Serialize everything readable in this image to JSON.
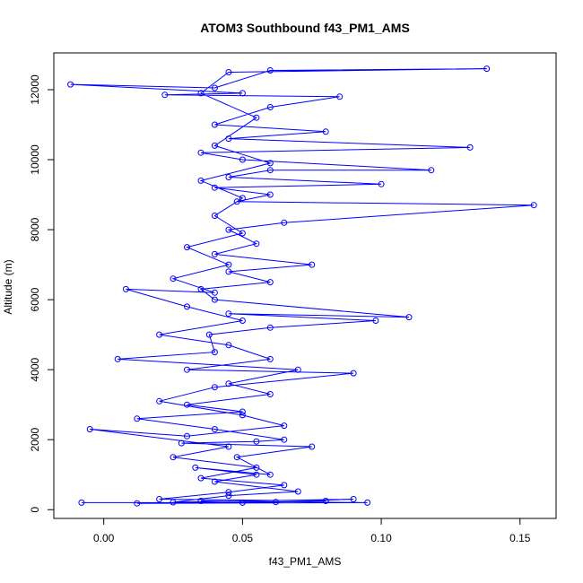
{
  "chart_data": {
    "type": "scatter",
    "title": "ATOM3 Southbound f43_PM1_AMS",
    "xlabel": "f43_PM1_AMS",
    "ylabel": "Altitude (m)",
    "xlim": [
      -0.018,
      0.163
    ],
    "ylim": [
      -250,
      13050
    ],
    "x_ticks": [
      0.0,
      0.05,
      0.1,
      0.15
    ],
    "x_tick_labels": [
      "0.00",
      "0.05",
      "0.10",
      "0.15"
    ],
    "y_ticks": [
      0,
      2000,
      4000,
      6000,
      8000,
      10000,
      12000
    ],
    "y_tick_labels": [
      "0",
      "2000",
      "4000",
      "6000",
      "8000",
      "10000",
      "12000"
    ],
    "grid": false,
    "legend": "none",
    "series": [
      {
        "color": "#0000ff",
        "marker": "open-circle",
        "connected": true,
        "points": [
          [
            0.035,
            250
          ],
          [
            0.095,
            200
          ],
          [
            0.012,
            180
          ],
          [
            0.062,
            220
          ],
          [
            0.09,
            300
          ],
          [
            0.025,
            210
          ],
          [
            0.045,
            400
          ],
          [
            0.07,
            520
          ],
          [
            0.04,
            800
          ],
          [
            0.055,
            1000
          ],
          [
            0.033,
            1200
          ],
          [
            0.06,
            1000
          ],
          [
            0.048,
            1500
          ],
          [
            0.075,
            1800
          ],
          [
            0.028,
            1900
          ],
          [
            0.055,
            1950
          ],
          [
            0.065,
            2000
          ],
          [
            0.04,
            2300
          ],
          [
            0.012,
            2600
          ],
          [
            0.05,
            2800
          ],
          [
            0.03,
            3000
          ],
          [
            0.06,
            3300
          ],
          [
            0.045,
            3600
          ],
          [
            0.07,
            4000
          ],
          [
            0.005,
            4300
          ],
          [
            0.04,
            4500
          ],
          [
            0.038,
            5000
          ],
          [
            0.06,
            5200
          ],
          [
            0.098,
            5400
          ],
          [
            0.045,
            5600
          ],
          [
            0.11,
            5500
          ],
          [
            0.04,
            6000
          ],
          [
            0.035,
            6300
          ],
          [
            0.06,
            6500
          ],
          [
            0.045,
            6800
          ],
          [
            0.075,
            7000
          ],
          [
            0.04,
            7300
          ],
          [
            0.055,
            7600
          ],
          [
            0.045,
            8000
          ],
          [
            0.065,
            8200
          ],
          [
            0.155,
            8700
          ],
          [
            0.048,
            8800
          ],
          [
            0.06,
            9000
          ],
          [
            0.04,
            9200
          ],
          [
            0.1,
            9300
          ],
          [
            0.045,
            9500
          ],
          [
            0.06,
            9700
          ],
          [
            0.118,
            9700
          ],
          [
            0.05,
            10000
          ],
          [
            0.035,
            10200
          ],
          [
            0.132,
            10350
          ],
          [
            0.045,
            10600
          ],
          [
            0.08,
            10800
          ],
          [
            0.04,
            11000
          ],
          [
            0.06,
            11500
          ],
          [
            0.085,
            11800
          ],
          [
            0.022,
            11850
          ],
          [
            0.05,
            11900
          ],
          [
            -0.012,
            12150
          ],
          [
            0.04,
            12050
          ],
          [
            0.06,
            12550
          ],
          [
            0.138,
            12600
          ],
          [
            0.045,
            12500
          ],
          [
            0.035,
            11900
          ],
          [
            0.055,
            11200
          ],
          [
            0.04,
            10400
          ],
          [
            0.06,
            9900
          ],
          [
            0.035,
            9400
          ],
          [
            0.05,
            8900
          ],
          [
            0.04,
            8400
          ],
          [
            0.05,
            7900
          ],
          [
            0.03,
            7500
          ],
          [
            0.045,
            7000
          ],
          [
            0.025,
            6600
          ],
          [
            0.04,
            6200
          ],
          [
            0.008,
            6300
          ],
          [
            0.03,
            5800
          ],
          [
            0.05,
            5400
          ],
          [
            0.02,
            5000
          ],
          [
            0.045,
            4700
          ],
          [
            0.06,
            4300
          ],
          [
            0.03,
            4000
          ],
          [
            0.09,
            3900
          ],
          [
            0.04,
            3500
          ],
          [
            0.02,
            3100
          ],
          [
            0.05,
            2700
          ],
          [
            0.065,
            2400
          ],
          [
            0.03,
            2100
          ],
          [
            -0.005,
            2300
          ],
          [
            0.045,
            1800
          ],
          [
            0.025,
            1500
          ],
          [
            0.055,
            1200
          ],
          [
            0.035,
            900
          ],
          [
            0.065,
            700
          ],
          [
            0.045,
            500
          ],
          [
            0.02,
            300
          ],
          [
            0.08,
            250
          ],
          [
            0.05,
            200
          ],
          [
            -0.008,
            200
          ]
        ]
      }
    ]
  }
}
